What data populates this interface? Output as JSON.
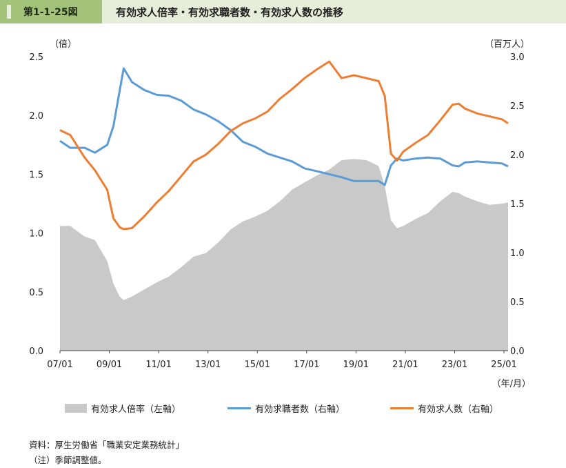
{
  "header": {
    "figure_label": "第1-1-25図",
    "title": "有効求人倍率・有効求職者数・有効求人数の推移"
  },
  "axes": {
    "left_unit": "（倍）",
    "right_unit": "（百万人）",
    "x_unit": "（年/月）"
  },
  "legend": [
    {
      "label": "有効求人倍率（左軸）",
      "color": "#c9c9c9"
    },
    {
      "label": "有効求職者数（右軸）",
      "color": "#5b9bd5"
    },
    {
      "label": "有効求人数（右軸）",
      "color": "#ed7d31"
    }
  ],
  "notes": {
    "source": "資料：厚生労働省「職業安定業務統計」",
    "note": "（注）季節調整値。"
  },
  "chart_data": {
    "type": "area+line",
    "x_tick_labels": [
      "07/01",
      "09/01",
      "11/01",
      "13/01",
      "15/01",
      "17/01",
      "19/01",
      "21/01",
      "23/01",
      "25/01"
    ],
    "x_range": [
      "2007-01",
      "2025-03"
    ],
    "y_left": {
      "label": "（倍）",
      "range": [
        0.0,
        2.5
      ],
      "ticks": [
        "0.0",
        "0.5",
        "1.0",
        "1.5",
        "2.0",
        "2.5"
      ]
    },
    "y_right": {
      "label": "（百万人）",
      "range": [
        0.0,
        3.0
      ],
      "ticks": [
        "0.0",
        "0.5",
        "1.0",
        "1.5",
        "2.0",
        "2.5",
        "3.0"
      ]
    },
    "grid": false,
    "legend_position": "bottom",
    "series": [
      {
        "name": "有効求人倍率（左軸）",
        "type": "area",
        "axis": "left",
        "color": "#c9c9c9",
        "x": [
          "2007-01",
          "2007-06",
          "2008-01",
          "2008-06",
          "2008-12",
          "2009-03",
          "2009-06",
          "2009-08",
          "2009-12",
          "2010-06",
          "2010-12",
          "2011-06",
          "2011-12",
          "2012-06",
          "2012-12",
          "2013-06",
          "2013-12",
          "2014-06",
          "2014-12",
          "2015-06",
          "2015-12",
          "2016-06",
          "2016-12",
          "2017-06",
          "2017-12",
          "2018-06",
          "2018-12",
          "2019-06",
          "2019-12",
          "2020-03",
          "2020-06",
          "2020-09",
          "2020-12",
          "2021-06",
          "2021-12",
          "2022-06",
          "2022-12",
          "2023-03",
          "2023-06",
          "2023-12",
          "2024-06",
          "2024-12",
          "2025-03"
        ],
        "values": [
          1.06,
          1.06,
          0.97,
          0.94,
          0.76,
          0.57,
          0.46,
          0.43,
          0.46,
          0.52,
          0.58,
          0.63,
          0.71,
          0.8,
          0.83,
          0.92,
          1.03,
          1.1,
          1.14,
          1.19,
          1.27,
          1.37,
          1.43,
          1.49,
          1.54,
          1.62,
          1.63,
          1.62,
          1.57,
          1.4,
          1.11,
          1.04,
          1.06,
          1.12,
          1.17,
          1.27,
          1.35,
          1.34,
          1.31,
          1.27,
          1.24,
          1.25,
          1.26
        ]
      },
      {
        "name": "有効求職者数（右軸）",
        "type": "line",
        "axis": "right",
        "color": "#5b9bd5",
        "x": [
          "2007-01",
          "2007-06",
          "2008-01",
          "2008-06",
          "2008-12",
          "2009-03",
          "2009-06",
          "2009-08",
          "2009-12",
          "2010-06",
          "2010-12",
          "2011-06",
          "2011-12",
          "2012-06",
          "2012-12",
          "2013-06",
          "2013-12",
          "2014-06",
          "2014-12",
          "2015-06",
          "2015-12",
          "2016-06",
          "2016-12",
          "2017-06",
          "2017-12",
          "2018-06",
          "2018-12",
          "2019-06",
          "2019-12",
          "2020-03",
          "2020-06",
          "2020-09",
          "2020-12",
          "2021-06",
          "2021-12",
          "2022-06",
          "2022-12",
          "2023-03",
          "2023-06",
          "2023-12",
          "2024-06",
          "2024-12",
          "2025-03"
        ],
        "values": [
          2.14,
          2.07,
          2.07,
          2.02,
          2.1,
          2.29,
          2.65,
          2.88,
          2.74,
          2.66,
          2.61,
          2.6,
          2.55,
          2.46,
          2.41,
          2.34,
          2.25,
          2.13,
          2.08,
          2.01,
          1.97,
          1.93,
          1.86,
          1.83,
          1.8,
          1.77,
          1.73,
          1.73,
          1.73,
          1.69,
          1.89,
          1.96,
          1.94,
          1.96,
          1.97,
          1.96,
          1.89,
          1.88,
          1.92,
          1.93,
          1.92,
          1.91,
          1.88
        ]
      },
      {
        "name": "有効求人数（右軸）",
        "type": "line",
        "axis": "right",
        "color": "#ed7d31",
        "x": [
          "2007-01",
          "2007-06",
          "2008-01",
          "2008-06",
          "2008-12",
          "2009-03",
          "2009-06",
          "2009-08",
          "2009-12",
          "2010-06",
          "2010-12",
          "2011-06",
          "2011-12",
          "2012-06",
          "2012-12",
          "2013-06",
          "2013-12",
          "2014-06",
          "2014-12",
          "2015-06",
          "2015-12",
          "2016-06",
          "2016-12",
          "2017-06",
          "2017-12",
          "2018-06",
          "2018-12",
          "2019-06",
          "2019-12",
          "2020-03",
          "2020-06",
          "2020-09",
          "2020-12",
          "2021-06",
          "2021-12",
          "2022-06",
          "2022-12",
          "2023-03",
          "2023-06",
          "2023-12",
          "2024-06",
          "2024-12",
          "2025-03"
        ],
        "values": [
          2.25,
          2.2,
          1.97,
          1.84,
          1.64,
          1.35,
          1.26,
          1.24,
          1.25,
          1.37,
          1.51,
          1.63,
          1.78,
          1.93,
          2.0,
          2.11,
          2.24,
          2.32,
          2.37,
          2.44,
          2.57,
          2.67,
          2.78,
          2.87,
          2.95,
          2.78,
          2.81,
          2.78,
          2.75,
          2.6,
          2.01,
          1.94,
          2.03,
          2.12,
          2.2,
          2.35,
          2.51,
          2.52,
          2.47,
          2.42,
          2.39,
          2.36,
          2.32
        ]
      }
    ]
  }
}
